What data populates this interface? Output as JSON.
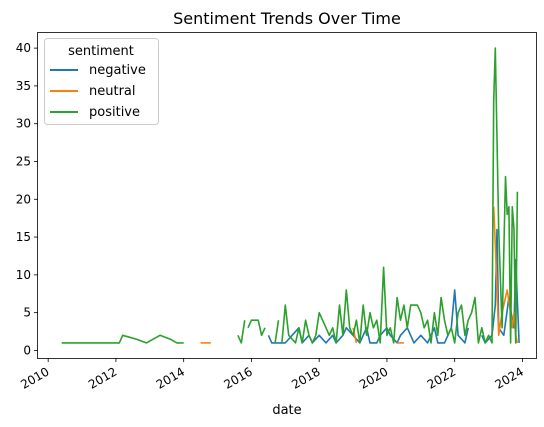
{
  "chart_data": {
    "type": "line",
    "title": "Sentiment Trends Over Time",
    "xlabel": "date",
    "ylabel": "",
    "xlim": [
      2009.7,
      2024.4
    ],
    "ylim": [
      -1,
      42
    ],
    "x_ticks": [
      {
        "value": 2010,
        "label": "2010"
      },
      {
        "value": 2012,
        "label": "2012"
      },
      {
        "value": 2014,
        "label": "2014"
      },
      {
        "value": 2016,
        "label": "2016"
      },
      {
        "value": 2018,
        "label": "2018"
      },
      {
        "value": 2020,
        "label": "2020"
      },
      {
        "value": 2022,
        "label": "2022"
      },
      {
        "value": 2024,
        "label": "2024"
      }
    ],
    "y_ticks": [
      {
        "value": 0,
        "label": "0"
      },
      {
        "value": 5,
        "label": "5"
      },
      {
        "value": 10,
        "label": "10"
      },
      {
        "value": 15,
        "label": "15"
      },
      {
        "value": 20,
        "label": "20"
      },
      {
        "value": 25,
        "label": "25"
      },
      {
        "value": 30,
        "label": "30"
      },
      {
        "value": 35,
        "label": "35"
      },
      {
        "value": 40,
        "label": "40"
      }
    ],
    "legend": {
      "title": "sentiment",
      "position": "upper-left"
    },
    "series": [
      {
        "name": "negative",
        "color": "#1f77b4",
        "segments": [
          [
            [
              2016.5,
              2
            ],
            [
              2016.6,
              1
            ],
            [
              2016.8,
              1
            ],
            [
              2017.0,
              1
            ],
            [
              2017.2,
              2
            ],
            [
              2017.4,
              3
            ],
            [
              2017.5,
              1
            ],
            [
              2017.7,
              2
            ],
            [
              2017.8,
              1
            ],
            [
              2018.0,
              2
            ],
            [
              2018.2,
              1
            ],
            [
              2018.4,
              2
            ],
            [
              2018.5,
              1
            ],
            [
              2018.7,
              2
            ],
            [
              2018.8,
              3
            ],
            [
              2019.0,
              2
            ],
            [
              2019.2,
              1
            ],
            [
              2019.4,
              3
            ],
            [
              2019.5,
              1
            ],
            [
              2019.7,
              1
            ],
            [
              2019.8,
              2
            ],
            [
              2020.0,
              3
            ],
            [
              2020.1,
              2
            ],
            [
              2020.3,
              1
            ],
            [
              2020.4,
              2
            ],
            [
              2020.6,
              3
            ],
            [
              2020.8,
              1
            ],
            [
              2021.0,
              2
            ],
            [
              2021.2,
              1
            ],
            [
              2021.4,
              3
            ],
            [
              2021.5,
              1
            ],
            [
              2021.7,
              1
            ],
            [
              2021.9,
              3
            ],
            [
              2022.0,
              8
            ],
            [
              2022.1,
              2
            ],
            [
              2022.3,
              1
            ],
            [
              2022.4,
              3
            ]
          ],
          [
            [
              2022.8,
              2
            ],
            [
              2022.9,
              1
            ],
            [
              2023.1,
              2
            ],
            [
              2023.2,
              6
            ],
            [
              2023.25,
              16
            ],
            [
              2023.3,
              3
            ],
            [
              2023.45,
              2
            ],
            [
              2023.6,
              7
            ],
            [
              2023.7,
              4
            ],
            [
              2023.75,
              3
            ],
            [
              2023.8,
              12
            ],
            [
              2023.9,
              1
            ]
          ]
        ]
      },
      {
        "name": "neutral",
        "color": "#ff7f0e",
        "segments": [
          [
            [
              2014.5,
              1
            ],
            [
              2014.8,
              1
            ]
          ],
          [
            [
              2019.0,
              3
            ],
            [
              2019.1,
              1
            ]
          ],
          [
            [
              2020.3,
              1
            ],
            [
              2020.5,
              1
            ]
          ],
          [
            [
              2023.15,
              19
            ],
            [
              2023.2,
              14
            ],
            [
              2023.3,
              2
            ],
            [
              2023.4,
              5
            ],
            [
              2023.55,
              8
            ],
            [
              2023.65,
              5
            ],
            [
              2023.7,
              3
            ],
            [
              2023.75,
              5
            ],
            [
              2023.8,
              2
            ],
            [
              2023.85,
              1
            ]
          ]
        ]
      },
      {
        "name": "positive",
        "color": "#2ca02c",
        "segments": [
          [
            [
              2010.4,
              1
            ],
            [
              2011.0,
              1
            ],
            [
              2011.6,
              1
            ],
            [
              2012.1,
              1
            ],
            [
              2012.2,
              2
            ],
            [
              2012.6,
              1.5
            ],
            [
              2012.9,
              1
            ],
            [
              2013.3,
              2
            ],
            [
              2013.6,
              1.5
            ],
            [
              2013.8,
              1
            ],
            [
              2014.0,
              1
            ]
          ],
          [
            [
              2015.6,
              2
            ],
            [
              2015.7,
              1
            ],
            [
              2015.8,
              4
            ]
          ],
          [
            [
              2015.9,
              3
            ],
            [
              2016.0,
              4
            ],
            [
              2016.2,
              4
            ],
            [
              2016.3,
              2
            ],
            [
              2016.4,
              3
            ]
          ],
          [
            [
              2016.7,
              1
            ],
            [
              2016.8,
              4
            ]
          ],
          [
            [
              2016.9,
              1
            ],
            [
              2017.0,
              6
            ],
            [
              2017.1,
              2
            ],
            [
              2017.3,
              1
            ],
            [
              2017.4,
              3
            ],
            [
              2017.5,
              1
            ],
            [
              2017.6,
              4
            ],
            [
              2017.7,
              2
            ],
            [
              2017.8,
              1
            ],
            [
              2017.9,
              2
            ],
            [
              2018.0,
              5
            ],
            [
              2018.1,
              4
            ],
            [
              2018.3,
              2
            ],
            [
              2018.4,
              3
            ],
            [
              2018.5,
              1
            ],
            [
              2018.6,
              6
            ],
            [
              2018.7,
              2
            ],
            [
              2018.8,
              8
            ],
            [
              2018.9,
              3
            ],
            [
              2019.0,
              2
            ],
            [
              2019.1,
              4
            ],
            [
              2019.2,
              1
            ],
            [
              2019.3,
              6
            ],
            [
              2019.4,
              2
            ],
            [
              2019.5,
              5
            ],
            [
              2019.6,
              3
            ],
            [
              2019.7,
              4
            ],
            [
              2019.8,
              1
            ],
            [
              2019.9,
              11
            ],
            [
              2020.0,
              2
            ],
            [
              2020.1,
              3
            ],
            [
              2020.2,
              1
            ],
            [
              2020.3,
              7
            ],
            [
              2020.4,
              4
            ],
            [
              2020.5,
              6
            ],
            [
              2020.6,
              3
            ],
            [
              2020.7,
              6
            ],
            [
              2020.9,
              6
            ],
            [
              2021.0,
              5
            ],
            [
              2021.1,
              3
            ],
            [
              2021.2,
              4
            ],
            [
              2021.3,
              1
            ],
            [
              2021.4,
              5
            ],
            [
              2021.5,
              2
            ],
            [
              2021.6,
              7
            ],
            [
              2021.7,
              4
            ],
            [
              2021.8,
              2
            ],
            [
              2021.9,
              3
            ],
            [
              2022.0,
              1
            ],
            [
              2022.1,
              5
            ],
            [
              2022.2,
              6
            ],
            [
              2022.3,
              2
            ],
            [
              2022.4,
              4
            ],
            [
              2022.5,
              5
            ],
            [
              2022.6,
              7
            ],
            [
              2022.7,
              1
            ],
            [
              2022.8,
              3
            ],
            [
              2022.9,
              1
            ],
            [
              2023.0,
              2
            ],
            [
              2023.1,
              1
            ],
            [
              2023.15,
              33
            ],
            [
              2023.2,
              40
            ],
            [
              2023.3,
              16
            ],
            [
              2023.4,
              3
            ],
            [
              2023.5,
              23
            ],
            [
              2023.55,
              18
            ],
            [
              2023.6,
              19
            ],
            [
              2023.65,
              1
            ],
            [
              2023.7,
              19
            ],
            [
              2023.75,
              16
            ],
            [
              2023.8,
              1
            ],
            [
              2023.85,
              21
            ]
          ]
        ]
      }
    ]
  }
}
